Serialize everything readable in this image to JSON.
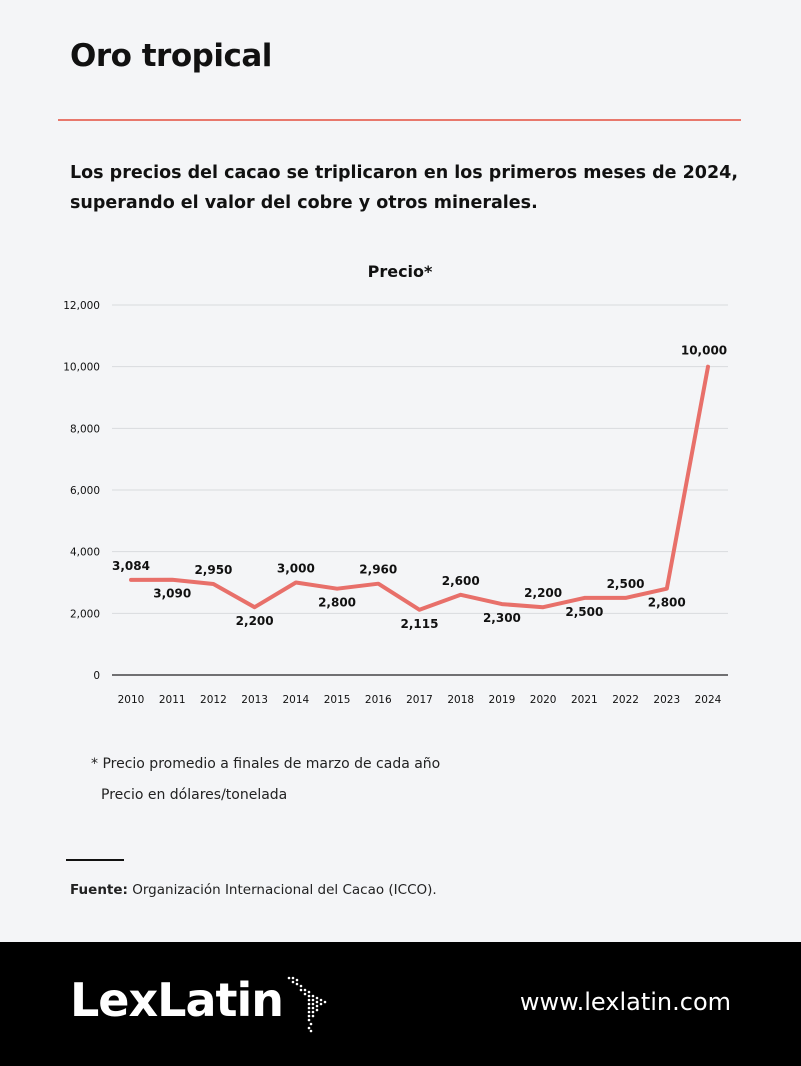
{
  "header": {
    "title": "Oro tropical",
    "subtitle": "Los precios del cacao se triplicaron en los primeros meses de 2024, superando el valor del cobre y otros minerales."
  },
  "chart_data": {
    "type": "line",
    "title": "Precio*",
    "xlabel": "",
    "ylabel": "",
    "categories": [
      "2010",
      "2011",
      "2012",
      "2013",
      "2014",
      "2015",
      "2016",
      "2017",
      "2018",
      "2019",
      "2020",
      "2021",
      "2022",
      "2023",
      "2024"
    ],
    "series": [
      {
        "values": [
          3084,
          3090,
          2950,
          2200,
          3000,
          2800,
          2960,
          2115,
          2600,
          2300,
          2200,
          2500,
          2500,
          2800,
          10000
        ],
        "labels": [
          "3,084",
          "3,090",
          "2,950",
          "2,200",
          "3,000",
          "2,800",
          "2,960",
          "2,115",
          "2,600",
          "2,300",
          "2,200",
          "2,500",
          "2,500",
          "2,800",
          "10,000"
        ]
      }
    ],
    "ylim": [
      0,
      12000
    ],
    "yticks": [
      0,
      2000,
      4000,
      6000,
      8000,
      10000,
      12000
    ],
    "ytick_labels": [
      "0",
      "2,000",
      "4,000",
      "6,000",
      "8,000",
      "10,000",
      "12,000"
    ],
    "grid": true,
    "line_color": "#e8706a"
  },
  "notes": {
    "note1": "* Precio promedio a finales de marzo de cada año",
    "note2": "Precio en dólares/tonelada"
  },
  "source": {
    "label": "Fuente:",
    "text": " Organización Internacional del Cacao (ICCO)."
  },
  "footer": {
    "logo_text": "LexLatin",
    "url": "www.lexlatin.com"
  },
  "colors": {
    "accent": "#e8786c",
    "background": "#f4f5f7",
    "footer": "#000000"
  }
}
